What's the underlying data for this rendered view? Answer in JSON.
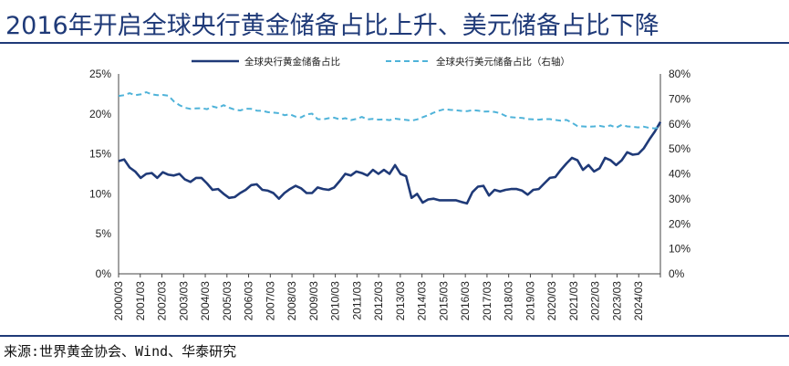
{
  "title": "2016年开启全球央行黄金储备占比上升、美元储备占比下降",
  "source": "来源:世界黄金协会、Wind、华泰研究",
  "chart_data": {
    "type": "line",
    "x_tick_labels": [
      "2000/03",
      "2001/03",
      "2002/03",
      "2003/03",
      "2004/03",
      "2005/03",
      "2006/03",
      "2007/03",
      "2008/03",
      "2009/03",
      "2010/03",
      "2011/03",
      "2012/03",
      "2013/03",
      "2014/03",
      "2015/03",
      "2016/03",
      "2017/03",
      "2018/03",
      "2019/03",
      "2020/03",
      "2021/03",
      "2022/03",
      "2023/03",
      "2024/03"
    ],
    "y_left": {
      "ticks": [
        "0%",
        "5%",
        "10%",
        "15%",
        "20%",
        "25%"
      ],
      "min": 0,
      "max": 25
    },
    "y_right": {
      "ticks": [
        "0%",
        "10%",
        "20%",
        "30%",
        "40%",
        "50%",
        "60%",
        "70%",
        "80%"
      ],
      "min": 0,
      "max": 80
    },
    "colors": {
      "gold": "#1f3a78",
      "usd": "#4fb3d9"
    },
    "series": [
      {
        "name": "全球央行黄金储备占比",
        "axis": "left",
        "style": "solid",
        "values": [
          14.1,
          14.3,
          13.3,
          12.8,
          12.0,
          12.5,
          12.6,
          12.0,
          12.7,
          12.4,
          12.3,
          12.5,
          11.8,
          11.5,
          12.0,
          12.0,
          11.3,
          10.5,
          10.6,
          10.0,
          9.5,
          9.6,
          10.1,
          10.5,
          11.1,
          11.2,
          10.5,
          10.4,
          10.1,
          9.4,
          10.1,
          10.6,
          11.0,
          10.7,
          10.1,
          10.1,
          10.8,
          10.6,
          10.5,
          10.8,
          11.6,
          12.5,
          12.3,
          12.8,
          12.6,
          12.3,
          13.0,
          12.5,
          13.0,
          12.5,
          13.6,
          12.5,
          12.2,
          9.5,
          10.0,
          8.9,
          9.3,
          9.4,
          9.2,
          9.2,
          9.2,
          9.2,
          9.0,
          8.8,
          10.2,
          10.9,
          11.0,
          9.8,
          10.5,
          10.3,
          10.5,
          10.6,
          10.6,
          10.4,
          9.9,
          10.5,
          10.6,
          11.3,
          12.0,
          12.1,
          13.0,
          13.8,
          14.5,
          14.2,
          13.0,
          13.6,
          12.8,
          13.2,
          14.5,
          14.2,
          13.6,
          14.2,
          15.2,
          14.9,
          15.0,
          15.7,
          16.8,
          17.8,
          19.0
        ]
      },
      {
        "name": "全球央行美元储备占比（右轴）",
        "axis": "right",
        "style": "dashed",
        "values": [
          71.2,
          71.5,
          72.3,
          71.5,
          71.8,
          72.7,
          71.8,
          71.5,
          71.6,
          71.3,
          69.0,
          67.5,
          66.5,
          66.0,
          66.2,
          66.3,
          65.9,
          67.0,
          66.4,
          67.5,
          66.5,
          65.7,
          65.4,
          66.1,
          66.0,
          65.3,
          65.2,
          64.7,
          64.5,
          64.3,
          63.5,
          63.8,
          62.9,
          62.6,
          63.8,
          64.1,
          61.9,
          61.8,
          62.3,
          62.5,
          61.8,
          62.3,
          61.5,
          62.0,
          62.8,
          61.8,
          62.0,
          61.7,
          61.8,
          61.5,
          62.1,
          61.8,
          61.6,
          61.3,
          61.8,
          62.7,
          63.5,
          64.5,
          65.3,
          65.9,
          65.6,
          65.5,
          65.2,
          65.1,
          65.5,
          65.3,
          64.9,
          65.0,
          64.8,
          64.3,
          63.2,
          62.7,
          62.5,
          62.4,
          61.9,
          61.8,
          61.7,
          61.9,
          61.9,
          61.6,
          61.3,
          61.6,
          60.5,
          59.1,
          59.0,
          58.9,
          59.0,
          59.2,
          58.8,
          59.4,
          58.5,
          59.6,
          59.0,
          58.8,
          58.6,
          58.9,
          58.4,
          58.2,
          58.9
        ]
      }
    ]
  }
}
